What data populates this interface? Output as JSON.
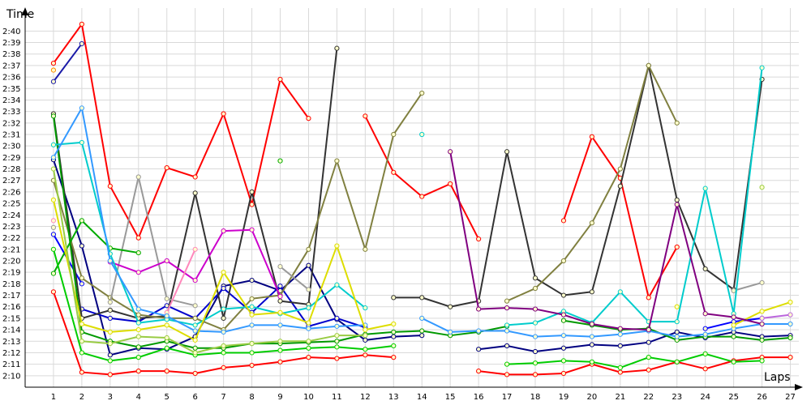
{
  "chart_data": {
    "type": "line",
    "title": "",
    "xlabel": "Laps",
    "ylabel": "Time",
    "x": [
      1,
      2,
      3,
      4,
      5,
      6,
      7,
      8,
      9,
      10,
      11,
      12,
      13,
      14,
      15,
      16,
      17,
      18,
      19,
      20,
      21,
      22,
      23,
      24,
      25,
      26,
      27
    ],
    "xlim": [
      0,
      27.3
    ],
    "ylim": [
      129,
      162
    ],
    "y_ticks": [
      "2:10",
      "2:11",
      "2:12",
      "2:13",
      "2:14",
      "2:15",
      "2:16",
      "2:17",
      "2:18",
      "2:19",
      "2:20",
      "2:21",
      "2:22",
      "2:23",
      "2:24",
      "2:25",
      "2:26",
      "2:27",
      "2:28",
      "2:29",
      "2:30",
      "2:31",
      "2:32",
      "2:33",
      "2:34",
      "2:35",
      "2:36",
      "2:37",
      "2:38",
      "2:39",
      "2:40"
    ],
    "y_tick_values": [
      130,
      131,
      132,
      133,
      134,
      135,
      136,
      137,
      138,
      139,
      140,
      141,
      142,
      143,
      144,
      145,
      146,
      147,
      148,
      149,
      150,
      151,
      152,
      153,
      154,
      155,
      156,
      157,
      158,
      159,
      160
    ],
    "grid": true,
    "series": [
      {
        "color": "#ff0000",
        "values": [
          137.3,
          130.3,
          130.1,
          130.4,
          130.4,
          130.2,
          130.7,
          130.9,
          131.2,
          131.6,
          131.5,
          131.8,
          131.6,
          null,
          null,
          null,
          null,
          null,
          null,
          null,
          null,
          null,
          null,
          null,
          null,
          null,
          null
        ]
      },
      {
        "color": "#ff0000",
        "values": [
          null,
          null,
          null,
          null,
          null,
          null,
          null,
          null,
          null,
          null,
          null,
          null,
          null,
          null,
          null,
          130.4,
          130.1,
          130.1,
          130.2,
          131.0,
          130.3,
          130.5,
          131.2,
          130.6,
          131.3,
          131.6,
          131.6
        ]
      },
      {
        "color": "#ff0000",
        "values": [
          157.2,
          160.6,
          146.5,
          142.0,
          148.1,
          147.3,
          152.8,
          144.9,
          155.8,
          152.4,
          null,
          152.6,
          147.7,
          145.6,
          146.7,
          141.9,
          null,
          null,
          143.5,
          150.8,
          147.2,
          136.8,
          141.2,
          null,
          null,
          null,
          null
        ]
      },
      {
        "color": "#ff8c00",
        "values": [
          156.6,
          null,
          null,
          null,
          null,
          null,
          null,
          null,
          null,
          null,
          null,
          null,
          null,
          null,
          null,
          null,
          null,
          null,
          null,
          null,
          null,
          null,
          null,
          null,
          null,
          null,
          null
        ]
      },
      {
        "color": "#1a1aa8",
        "values": [
          155.6,
          158.9,
          null,
          null,
          null,
          null,
          null,
          null,
          null,
          null,
          null,
          null,
          null,
          null,
          null,
          null,
          null,
          null,
          null,
          null,
          null,
          null,
          null,
          null,
          null,
          null,
          null
        ]
      },
      {
        "color": "#000080",
        "values": [
          148.8,
          141.3,
          131.8,
          132.4,
          132.3,
          133.4,
          137.8,
          138.3,
          137.4,
          139.6,
          134.9,
          133.1,
          133.4,
          133.5,
          null,
          132.3,
          132.6,
          132.1,
          132.4,
          132.7,
          132.6,
          132.9,
          133.8,
          133.3,
          133.8,
          133.4,
          133.5
        ]
      },
      {
        "color": "#0000ff",
        "values": [
          142.3,
          138.0,
          null,
          null,
          null,
          null,
          null,
          null,
          null,
          null,
          null,
          null,
          null,
          null,
          null,
          null,
          null,
          null,
          null,
          null,
          null,
          null,
          null,
          null,
          null,
          null,
          null
        ]
      },
      {
        "color": "#0000cc",
        "values": [
          null,
          135.8,
          135.0,
          134.7,
          136.1,
          135.0,
          137.6,
          135.5,
          137.8,
          134.3,
          135.0,
          134.2,
          null,
          null,
          null,
          null,
          null,
          null,
          null,
          null,
          null,
          null,
          null,
          null,
          null,
          null,
          null
        ]
      },
      {
        "color": "#0000ff",
        "values": [
          null,
          null,
          null,
          null,
          null,
          null,
          null,
          null,
          null,
          null,
          null,
          null,
          null,
          null,
          null,
          null,
          null,
          null,
          null,
          null,
          null,
          null,
          null,
          134.1,
          134.7,
          135.0,
          null
        ]
      },
      {
        "color": "#333333",
        "values": [
          152.8,
          135.0,
          135.7,
          135.0,
          135.2,
          145.9,
          135.0,
          146.0,
          136.5,
          136.2,
          158.5,
          null,
          136.8,
          136.8,
          136.0,
          136.5,
          149.5,
          138.5,
          137.0,
          137.3,
          146.5,
          157.0,
          145.3,
          139.3,
          137.5,
          155.8,
          null
        ]
      },
      {
        "color": "#808040",
        "values": [
          147.0,
          138.5,
          136.8,
          135.3,
          135.0,
          135.0,
          134.0,
          136.7,
          137.0,
          141.0,
          148.7,
          141.0,
          151.0,
          154.6,
          null,
          null,
          136.5,
          137.6,
          140.0,
          143.3,
          148.0,
          157.0,
          152.0,
          null,
          null,
          null,
          null
        ]
      },
      {
        "color": "#999999",
        "values": [
          142.9,
          null,
          136.4,
          147.3,
          136.7,
          136.1,
          null,
          null,
          139.5,
          137.5,
          null,
          null,
          null,
          null,
          null,
          null,
          null,
          null,
          null,
          null,
          null,
          null,
          null,
          null,
          137.4,
          138.1,
          null
        ]
      },
      {
        "color": "#cc00cc",
        "values": [
          null,
          null,
          139.9,
          139.0,
          140.0,
          138.3,
          142.6,
          142.7,
          136.9,
          null,
          null,
          null,
          null,
          null,
          null,
          null,
          null,
          null,
          null,
          null,
          null,
          null,
          null,
          null,
          null,
          null,
          null
        ]
      },
      {
        "color": "#ff88bb",
        "values": [
          143.5,
          null,
          null,
          null,
          135.5,
          141.0,
          null,
          null,
          null,
          null,
          null,
          null,
          null,
          null,
          null,
          null,
          null,
          null,
          null,
          null,
          null,
          null,
          null,
          null,
          null,
          null,
          null
        ]
      },
      {
        "color": "#00aa00",
        "values": [
          138.9,
          143.5,
          141.1,
          140.7,
          null,
          null,
          null,
          null,
          148.7,
          null,
          null,
          null,
          null,
          null,
          null,
          null,
          null,
          null,
          null,
          null,
          null,
          null,
          null,
          null,
          null,
          null,
          null
        ]
      },
      {
        "color": "#00cc00",
        "values": [
          141.0,
          132.0,
          131.3,
          131.6,
          132.4,
          131.8,
          132.0,
          132.0,
          132.2,
          132.4,
          132.5,
          132.3,
          132.6,
          null,
          null,
          null,
          131.0,
          131.1,
          131.3,
          131.2,
          130.7,
          131.6,
          131.2,
          131.9,
          131.2,
          131.3,
          null
        ]
      },
      {
        "color": "#009900",
        "values": [
          152.6,
          133.8,
          133.0,
          132.5,
          133.0,
          132.4,
          132.4,
          132.8,
          132.8,
          132.9,
          133.0,
          133.6,
          133.8,
          133.9,
          133.5,
          133.8,
          134.3,
          null,
          134.8,
          134.4,
          134.0,
          134.1,
          133.1,
          133.4,
          133.4,
          133.1,
          133.3
        ]
      },
      {
        "color": "#00cccc",
        "values": [
          150.1,
          150.3,
          140.6,
          134.6,
          134.9,
          134.4,
          135.8,
          136.0,
          135.4,
          135.9,
          137.9,
          135.9,
          null,
          151.0,
          null,
          null,
          134.4,
          134.6,
          135.6,
          134.6,
          137.3,
          134.7,
          134.7,
          146.3,
          135.4,
          156.8,
          null
        ]
      },
      {
        "color": "#3399ff",
        "values": [
          149.0,
          153.3,
          140.0,
          135.8,
          135.2,
          133.9,
          133.8,
          134.4,
          134.4,
          134.1,
          134.3,
          134.4,
          null,
          135.0,
          133.8,
          133.9,
          133.9,
          133.4,
          133.5,
          133.4,
          133.6,
          133.9,
          133.4,
          133.6,
          134.1,
          134.5,
          134.5
        ]
      },
      {
        "color": "#dddd00",
        "values": [
          145.3,
          134.5,
          133.8,
          134.0,
          134.4,
          133.1,
          139.0,
          135.3,
          135.5,
          134.6,
          141.3,
          134.0,
          134.5,
          null,
          null,
          null,
          null,
          null,
          null,
          null,
          null,
          null,
          136.0,
          null,
          134.4,
          135.6,
          136.4
        ]
      },
      {
        "color": "#99cc44",
        "values": [
          148.0,
          133.0,
          132.8,
          133.4,
          133.3,
          132.0,
          132.6,
          132.8,
          133.0,
          133.0,
          133.5,
          133.5,
          null,
          null,
          null,
          null,
          null,
          null,
          null,
          null,
          null,
          null,
          null,
          null,
          null,
          146.4,
          null
        ]
      },
      {
        "color": "#800080",
        "values": [
          null,
          null,
          null,
          null,
          null,
          null,
          null,
          null,
          null,
          null,
          null,
          null,
          null,
          null,
          149.5,
          135.8,
          135.9,
          135.8,
          135.3,
          134.5,
          134.1,
          134.0,
          144.9,
          135.4,
          135.1,
          134.5,
          null
        ]
      },
      {
        "color": "#bb66dd",
        "values": [
          null,
          null,
          null,
          null,
          null,
          null,
          null,
          null,
          null,
          null,
          null,
          null,
          null,
          null,
          null,
          null,
          null,
          null,
          null,
          null,
          null,
          null,
          null,
          null,
          null,
          135.0,
          135.3
        ]
      }
    ]
  }
}
